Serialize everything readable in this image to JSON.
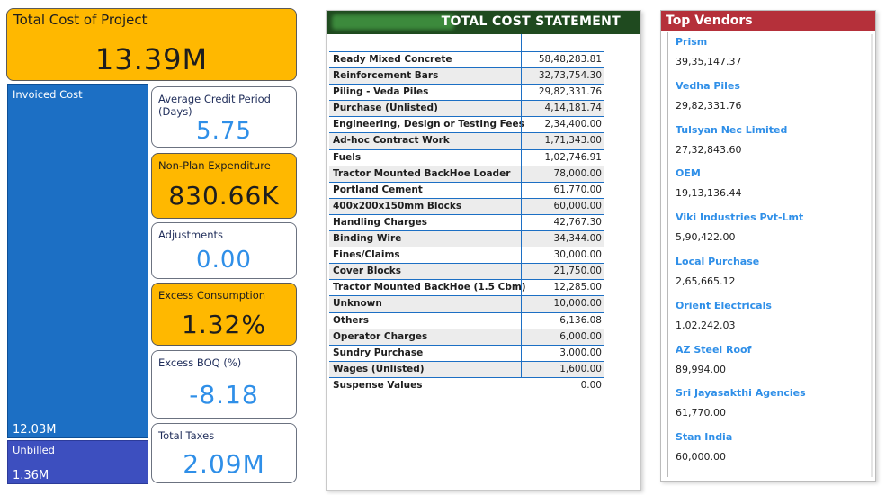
{
  "total_cost": {
    "label": "Total Cost of Project",
    "value": "13.39M"
  },
  "treemap": {
    "invoiced_label": "Invoiced Cost",
    "invoiced_value": "12.03M",
    "unbilled_label": "Unbilled",
    "unbilled_value": "1.36M"
  },
  "kpis": {
    "credit_period": {
      "label": "Average Credit Period (Days)",
      "value": "5.75"
    },
    "non_plan": {
      "label": "Non-Plan Expenditure",
      "value": "830.66K"
    },
    "adjustments": {
      "label": "Adjustments",
      "value": "0.00"
    },
    "excess_consumption": {
      "label": "Excess Consumption",
      "value": "1.32%"
    },
    "excess_boq": {
      "label": "Excess BOQ (%)",
      "value": "-8.18"
    },
    "total_taxes": {
      "label": "Total Taxes",
      "value": "2.09M"
    }
  },
  "statement": {
    "title": "TOTAL COST STATEMENT",
    "rows": [
      {
        "name": "Ready Mixed Concrete",
        "amount": "58,48,283.81"
      },
      {
        "name": "Reinforcement Bars",
        "amount": "32,73,754.30"
      },
      {
        "name": "Piling - Veda Piles",
        "amount": "29,82,331.76"
      },
      {
        "name": "Purchase (Unlisted)",
        "amount": "4,14,181.74"
      },
      {
        "name": "Engineering, Design or Testing Fees",
        "amount": "2,34,400.00"
      },
      {
        "name": "Ad-hoc Contract Work",
        "amount": "1,71,343.00"
      },
      {
        "name": "Fuels",
        "amount": "1,02,746.91"
      },
      {
        "name": "Tractor Mounted BackHoe Loader",
        "amount": "78,000.00"
      },
      {
        "name": "Portland Cement",
        "amount": "61,770.00"
      },
      {
        "name": "400x200x150mm Blocks",
        "amount": "60,000.00"
      },
      {
        "name": "Handling Charges",
        "amount": "42,767.30"
      },
      {
        "name": "Binding Wire",
        "amount": "34,344.00"
      },
      {
        "name": "Fines/Claims",
        "amount": "30,000.00"
      },
      {
        "name": "Cover Blocks",
        "amount": "21,750.00"
      },
      {
        "name": "Tractor Mounted BackHoe (1.5 Cbm)",
        "amount": "12,285.00"
      },
      {
        "name": "Unknown",
        "amount": "10,000.00"
      },
      {
        "name": "Others",
        "amount": "6,136.08"
      },
      {
        "name": "Operator Charges",
        "amount": "6,000.00"
      },
      {
        "name": "Sundry Purchase",
        "amount": "3,000.00"
      },
      {
        "name": "Wages (Unlisted)",
        "amount": "1,600.00"
      },
      {
        "name": "Suspense Values",
        "amount": "0.00"
      }
    ]
  },
  "vendors": {
    "title": "Top Vendors",
    "items": [
      {
        "name": "Prism",
        "value": "39,35,147.37"
      },
      {
        "name": "Vedha Piles",
        "value": "29,82,331.76"
      },
      {
        "name": "Tulsyan Nec Limited",
        "value": "27,32,843.60"
      },
      {
        "name": "OEM",
        "value": "19,13,136.44"
      },
      {
        "name": "Viki Industries Pvt-Lmt",
        "value": "5,90,422.00"
      },
      {
        "name": "Local Purchase",
        "value": "2,65,665.12"
      },
      {
        "name": "Orient Electricals",
        "value": "1,02,242.03"
      },
      {
        "name": "AZ Steel Roof",
        "value": "89,994.00"
      },
      {
        "name": "Sri Jayasakthi Agencies",
        "value": "61,770.00"
      },
      {
        "name": "Stan India",
        "value": "60,000.00"
      }
    ]
  },
  "colors": {
    "accent_yellow": "#ffb800",
    "value_blue": "#2f8fe8",
    "treemap_blue": "#1c6fc4",
    "vendor_red": "#b5303a",
    "statement_green": "#1f4a1f"
  }
}
